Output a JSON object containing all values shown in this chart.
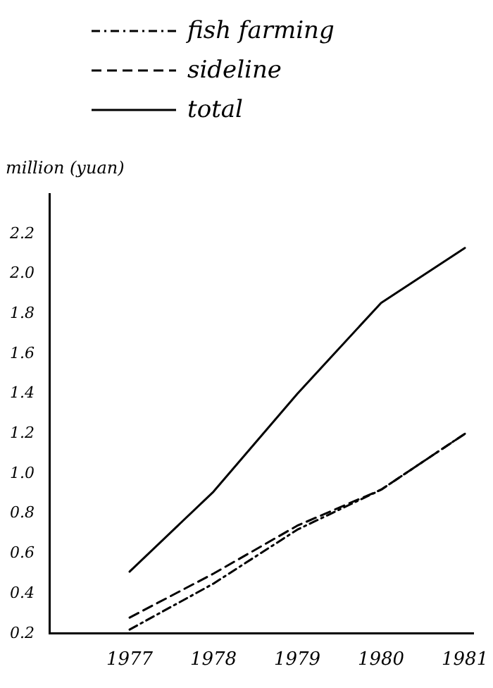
{
  "chart_data": {
    "type": "line",
    "ylabel": "million (yuan)",
    "x": [
      1977,
      1978,
      1979,
      1980,
      1981
    ],
    "xlim": [
      1976.05,
      1981.1
    ],
    "xticks": [
      1977,
      1978,
      1979,
      1980,
      1981
    ],
    "ylim": [
      0.2,
      2.4
    ],
    "yticks": [
      0.2,
      0.4,
      0.6,
      0.8,
      {
        "value": 1,
        "label": "1.0"
      },
      1.2,
      1.4,
      1.6,
      1.8,
      {
        "value": 2,
        "label": "2.0"
      },
      2.2
    ],
    "series": [
      {
        "name": "fish farming",
        "color": "#000000",
        "line_style": "dotted",
        "values": [
          0.22,
          0.45,
          0.72,
          0.92,
          1.2
        ]
      },
      {
        "name": "sideline",
        "color": "#000000",
        "line_style": "dashed",
        "values": [
          0.28,
          0.5,
          0.74,
          0.92,
          1.2
        ]
      },
      {
        "name": "total",
        "color": "#000000",
        "line_style": "solid",
        "values": [
          0.51,
          0.91,
          1.4,
          1.855,
          2.13
        ]
      }
    ],
    "grid": false,
    "legend": "top",
    "marker": "none"
  }
}
